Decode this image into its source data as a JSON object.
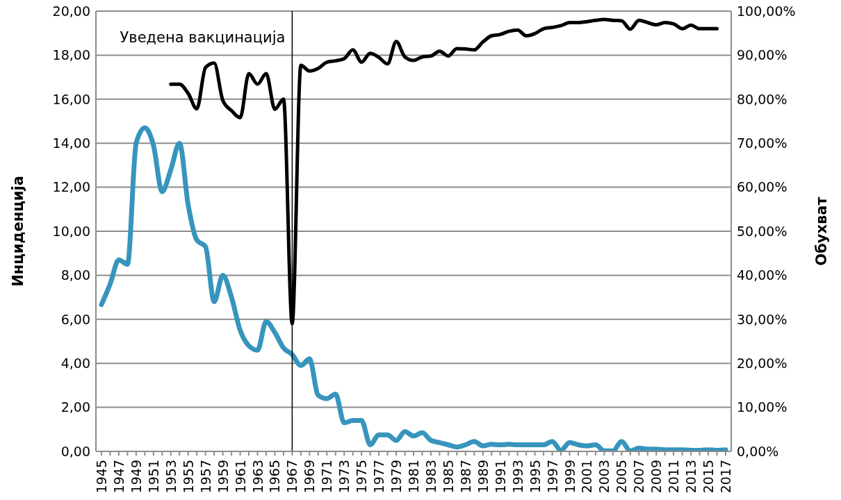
{
  "chart_data": {
    "type": "line",
    "categories": [
      "1945",
      null,
      "1947",
      null,
      "1949",
      null,
      "1951",
      null,
      "1953",
      null,
      "1955",
      null,
      "1957",
      null,
      "1959",
      null,
      "1961",
      null,
      "1963",
      null,
      "1965",
      null,
      "1967",
      null,
      "1969",
      null,
      "1971",
      null,
      "1973",
      null,
      "1975",
      null,
      "1977",
      null,
      "1979",
      null,
      "1981",
      null,
      "1983",
      null,
      "1985",
      null,
      "1987",
      null,
      "1989",
      null,
      "1991",
      null,
      "1993",
      null,
      "1995",
      null,
      "1997",
      null,
      "1999",
      null,
      "2001",
      null,
      "2003",
      null,
      "2005",
      null,
      "2007",
      null,
      "2009",
      null,
      "2011",
      null,
      "2013",
      null,
      "2015",
      null,
      "2017"
    ],
    "series": [
      {
        "color": "#3795bd",
        "values": [
          6.67,
          7.6,
          8.7,
          8.5,
          14.0,
          14.7,
          13.9,
          11.8,
          12.8,
          14.0,
          11.2,
          9.6,
          9.3,
          6.8,
          8.0,
          7.0,
          5.5,
          4.8,
          4.6,
          5.9,
          5.4,
          4.7,
          4.4,
          3.9,
          4.2,
          2.55,
          2.4,
          2.6,
          1.3,
          1.4,
          1.4,
          0.3,
          0.75,
          0.75,
          0.5,
          0.9,
          0.7,
          0.85,
          0.5,
          0.4,
          0.3,
          0.2,
          0.3,
          0.45,
          0.25,
          0.32,
          0.3,
          0.32,
          0.3,
          0.3,
          0.3,
          0.3,
          0.45,
          0.05,
          0.4,
          0.3,
          0.25,
          0.3,
          0.02,
          0.02,
          0.45,
          0.02,
          0.15,
          0.1,
          0.1,
          0.07,
          0.07,
          0.07,
          0.05,
          0.05,
          0.07,
          0.05,
          0.07
        ]
      },
      {
        "color": "#000000",
        "axis": "y2",
        "values": [
          null,
          null,
          null,
          null,
          null,
          null,
          null,
          null,
          83.4,
          83.4,
          81.3,
          77.8,
          87.2,
          88.2,
          79.7,
          77.4,
          75.8,
          85.8,
          83.4,
          85.8,
          77.7,
          80,
          29,
          87.7,
          86.4,
          87,
          88.4,
          88.7,
          89.2,
          91.2,
          88.4,
          90.4,
          89.5,
          88,
          93.1,
          89.6,
          88.8,
          89.6,
          89.8,
          90.9,
          89.8,
          91.5,
          91.4,
          91.2,
          93,
          94.4,
          94.7,
          95.4,
          95.7,
          94.4,
          94.9,
          96,
          96.3,
          96.7,
          97.4,
          97.4,
          97.6,
          97.9,
          98.1,
          97.9,
          97.8,
          95.9,
          97.9,
          97.4,
          96.9,
          97.4,
          97.1,
          96,
          96.8,
          96,
          96,
          96,
          null
        ]
      }
    ],
    "ylabel": "Инциденција",
    "y2label": "Обухват",
    "ylim": [
      0,
      20
    ],
    "yticks": [
      {
        "value": 0,
        "label": "0,00"
      },
      {
        "value": 2,
        "label": "2,00"
      },
      {
        "value": 4,
        "label": "4,00"
      },
      {
        "value": 6,
        "label": "6,00"
      },
      {
        "value": 8,
        "label": "8,00"
      },
      {
        "value": 10,
        "label": "10,00"
      },
      {
        "value": 12,
        "label": "12,00"
      },
      {
        "value": 14,
        "label": "14,00"
      },
      {
        "value": 16,
        "label": "16,00"
      },
      {
        "value": 18,
        "label": "18,00"
      },
      {
        "value": 20,
        "label": "20,00"
      }
    ],
    "y2lim": [
      0,
      100
    ],
    "y2ticks": [
      {
        "value": 0,
        "label": "0,00%"
      },
      {
        "value": 10,
        "label": "10,00%"
      },
      {
        "value": 20,
        "label": "20,00%"
      },
      {
        "value": 30,
        "label": "30,00%"
      },
      {
        "value": 40,
        "label": "40,00%"
      },
      {
        "value": 50,
        "label": "50,00%"
      },
      {
        "value": 60,
        "label": "60,00%"
      },
      {
        "value": 70,
        "label": "70,00%"
      },
      {
        "value": 80,
        "label": "80,00%"
      },
      {
        "value": 90,
        "label": "90,00%"
      },
      {
        "value": 100,
        "label": "100,00%"
      }
    ],
    "ref_lines": [
      {
        "axis": "x",
        "value": "1967",
        "label": "Уведена вакцинација",
        "color": "#000000"
      }
    ],
    "grid": "y",
    "marker": "none",
    "line_style": "solid"
  }
}
